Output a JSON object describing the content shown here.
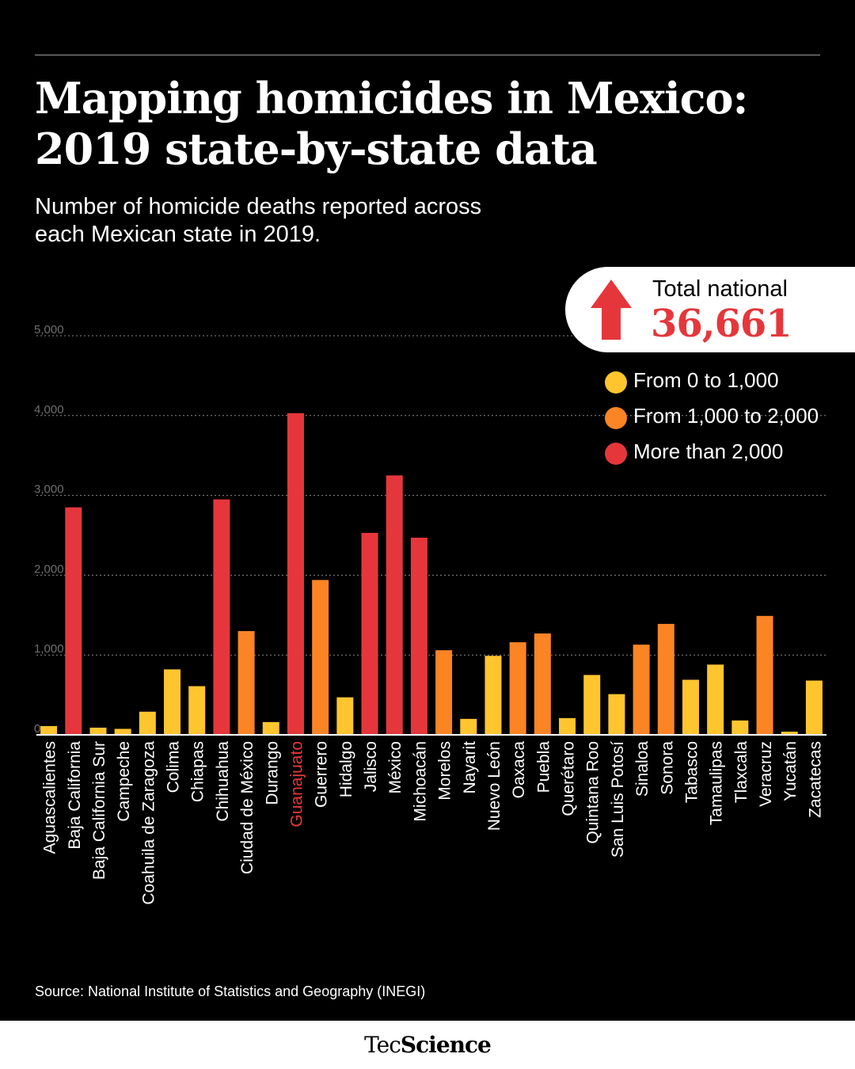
{
  "header": {
    "title_line1": "Mapping homicides in Mexico:",
    "title_line2": "2019 state-by-state data",
    "subtitle_line1": "Number of homicide deaths reported across",
    "subtitle_line2": "each Mexican state in 2019."
  },
  "total": {
    "label": "Total national",
    "value": "36,661",
    "color": "#e5373b"
  },
  "legend": [
    {
      "label": "From 0 to 1,000",
      "color": "#ffc52f"
    },
    {
      "label": "From 1,000 to 2,000",
      "color": "#fb8425"
    },
    {
      "label": "More than 2,000",
      "color": "#e5373b"
    }
  ],
  "chart_data": {
    "type": "bar",
    "ylim": [
      0,
      5000
    ],
    "yticks": [
      0,
      1000,
      2000,
      3000,
      4000,
      5000
    ],
    "ytick_labels": [
      "0",
      "1,000",
      "2,000",
      "3,000",
      "4,000",
      "5,000"
    ],
    "grid": true,
    "highlight_category": "Guanajuato",
    "highlight_color": "#e5373b",
    "categories": [
      "Aguascalientes",
      "Baja California",
      "Baja California Sur",
      "Campeche",
      "Coahuila de Zaragoza",
      "Colima",
      "Chiapas",
      "Chihuahua",
      "Ciudad de México",
      "Durango",
      "Guanajuato",
      "Guerrero",
      "Hidalgo",
      "Jalisco",
      "México",
      "Michoacán",
      "Morelos",
      "Nayarit",
      "Nuevo León",
      "Oaxaca",
      "Puebla",
      "Querétaro",
      "Quintana Roo",
      "San Luis Potosí",
      "Sinaloa",
      "Sonora",
      "Tabasco",
      "Tamaulipas",
      "Tlaxcala",
      "Veracruz",
      "Yucatán",
      "Zacatecas"
    ],
    "values": [
      110,
      2850,
      90,
      75,
      290,
      820,
      610,
      2950,
      1300,
      160,
      4030,
      1940,
      470,
      2530,
      3250,
      2470,
      1060,
      200,
      990,
      1160,
      1270,
      210,
      750,
      510,
      1130,
      1390,
      690,
      880,
      180,
      1490,
      40,
      680
    ],
    "tiers": [
      0,
      2,
      0,
      0,
      0,
      0,
      0,
      2,
      1,
      0,
      2,
      1,
      0,
      2,
      2,
      2,
      1,
      0,
      0,
      1,
      1,
      0,
      0,
      0,
      1,
      1,
      0,
      0,
      0,
      1,
      0,
      0
    ]
  },
  "source": "Source: National Institute of Statistics and Geography (INEGI)",
  "brand": {
    "part1": "Tec",
    "part2": "Science"
  }
}
